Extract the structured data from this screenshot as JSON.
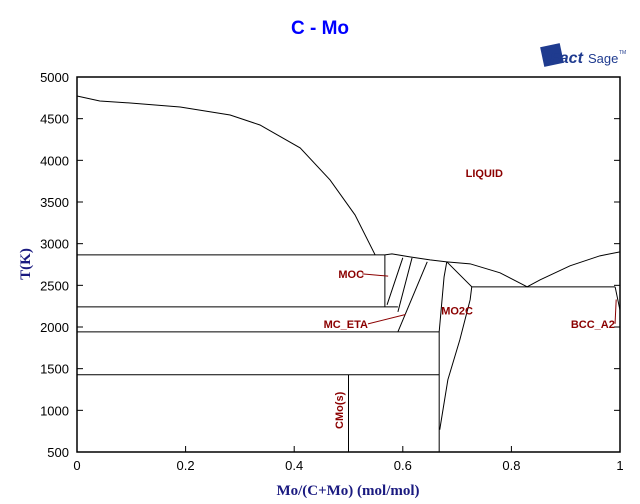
{
  "chart_data": {
    "type": "line",
    "title": "C - Mo",
    "xlabel": "Mo/(C+Mo) (mol/mol)",
    "ylabel": "T(K)",
    "xlim": [
      0,
      1
    ],
    "ylim": [
      500,
      5000
    ],
    "xticks": [
      "0",
      "0.2",
      "0.4",
      "0.6",
      "0.8",
      "1"
    ],
    "xtick_values": [
      0,
      0.2,
      0.4,
      0.6,
      0.8,
      1
    ],
    "yticks": [
      "500",
      "1000",
      "1500",
      "2000",
      "2500",
      "3000",
      "3500",
      "4000",
      "4500",
      "5000"
    ],
    "ytick_values": [
      500,
      1000,
      1500,
      2000,
      2500,
      3000,
      3500,
      4000,
      4500,
      5000
    ],
    "grid": false,
    "line_color": "#000000",
    "title_color": "#0000ff",
    "label_color": "#8b0000",
    "boundaries": [
      {
        "x": [
          0,
          0.042,
          0.098,
          0.19,
          0.282,
          0.337,
          0.411,
          0.466,
          0.512,
          0.549
        ],
        "y": [
          4772,
          4712,
          4688,
          4640,
          4544,
          4424,
          4149,
          3765,
          3345,
          2866
        ]
      },
      {
        "x": [
          0,
          0.567
        ],
        "y": [
          2866,
          2866
        ]
      },
      {
        "x": [
          0.567,
          0.567
        ],
        "y": [
          2866,
          2242
        ]
      },
      {
        "x": [
          0,
          0.591
        ],
        "y": [
          2242,
          2242
        ]
      },
      {
        "x": [
          0,
          0.667
        ],
        "y": [
          1942,
          1942
        ]
      },
      {
        "x": [
          0,
          0.667
        ],
        "y": [
          1427,
          1427
        ]
      },
      {
        "x": [
          0.5,
          0.5
        ],
        "y": [
          1427,
          500
        ]
      },
      {
        "x": [
          0.567,
          0.58,
          0.613,
          0.65,
          0.681
        ],
        "y": [
          2866,
          2878,
          2842,
          2806,
          2782
        ]
      },
      {
        "x": [
          0.571,
          0.6
        ],
        "y": [
          2266,
          2830
        ]
      },
      {
        "x": [
          0.591,
          0.617
        ],
        "y": [
          2182,
          2830
        ]
      },
      {
        "x": [
          0.591,
          0.645
        ],
        "y": [
          1942,
          2782
        ]
      },
      {
        "x": [
          0.681,
          0.676,
          0.667,
          0.667
        ],
        "y": [
          2782,
          2600,
          1942,
          500
        ]
      },
      {
        "x": [
          0.681,
          0.727,
          0.724,
          0.705,
          0.683,
          0.674,
          0.668
        ],
        "y": [
          2782,
          2482,
          2326,
          1846,
          1367,
          1007,
          767
        ]
      },
      {
        "x": [
          0.681,
          0.724,
          0.779,
          0.829,
          0.853,
          0.908,
          0.963,
          1
        ],
        "y": [
          2782,
          2758,
          2650,
          2482,
          2566,
          2734,
          2854,
          2902
        ]
      },
      {
        "x": [
          0.727,
          0.991
        ],
        "y": [
          2482,
          2482
        ]
      },
      {
        "x": [
          0.991,
          0.996,
          1
        ],
        "y": [
          2482,
          2326,
          2200
        ]
      }
    ],
    "annotations": [
      {
        "text": "LIQUID",
        "x": 0.75,
        "y": 3800
      },
      {
        "text": "MOC",
        "x": 0.505,
        "y": 2590,
        "arrow_to": [
          0.573,
          2610
        ]
      },
      {
        "text": "MC_ETA",
        "x": 0.495,
        "y": 1990,
        "arrow_to": [
          0.605,
          2150
        ]
      },
      {
        "text": "MO2C",
        "x": 0.7,
        "y": 2150
      },
      {
        "text": "BCC_A2",
        "x": 0.95,
        "y": 1990,
        "arrow_to": [
          0.993,
          2330
        ]
      },
      {
        "text": "CMo(s)",
        "x": 0.49,
        "y": 1000,
        "rotated": true
      }
    ]
  },
  "logo": {
    "text": "FactSage",
    "mark": "™"
  }
}
